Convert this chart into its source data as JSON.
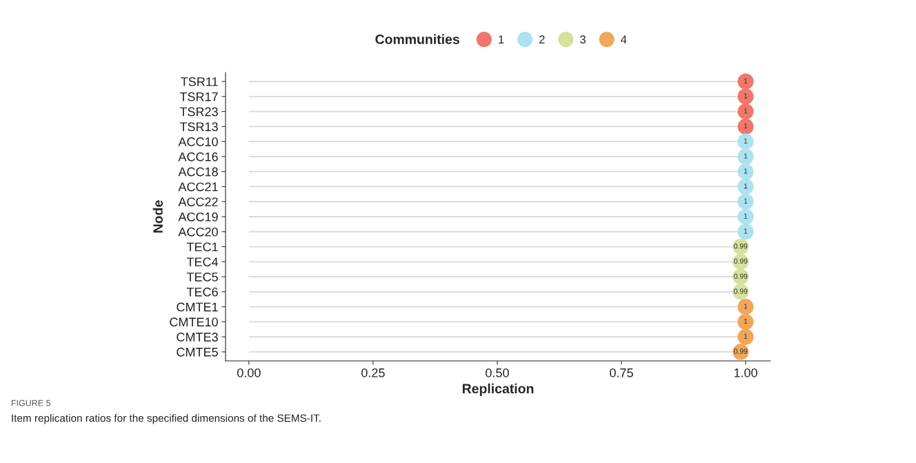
{
  "chart_data": {
    "type": "lollipop",
    "orientation": "horizontal",
    "xlabel": "Replication",
    "ylabel": "Node",
    "legend_title": "Communities",
    "legend": "top",
    "categories": [
      "TSR11",
      "TSR17",
      "TSR23",
      "TSR13",
      "ACC10",
      "ACC16",
      "ACC18",
      "ACC21",
      "ACC22",
      "ACC19",
      "ACC20",
      "TEC1",
      "TEC4",
      "TEC5",
      "TEC6",
      "CMTE1",
      "CMTE10",
      "CMTE3",
      "CMTE5"
    ],
    "series": [
      {
        "name": "1",
        "color": "#f0776b",
        "values": [
          1,
          1,
          1,
          1,
          null,
          null,
          null,
          null,
          null,
          null,
          null,
          null,
          null,
          null,
          null,
          null,
          null,
          null,
          null
        ]
      },
      {
        "name": "2",
        "color": "#ade2f0",
        "values": [
          null,
          null,
          null,
          null,
          1,
          1,
          1,
          1,
          1,
          1,
          1,
          null,
          null,
          null,
          null,
          null,
          null,
          null,
          null
        ]
      },
      {
        "name": "3",
        "color": "#d4e29c",
        "values": [
          null,
          null,
          null,
          null,
          null,
          null,
          null,
          null,
          null,
          null,
          null,
          0.99,
          0.99,
          0.99,
          0.99,
          null,
          null,
          null,
          null
        ]
      },
      {
        "name": "4",
        "color": "#f2a65a",
        "values": [
          null,
          null,
          null,
          null,
          null,
          null,
          null,
          null,
          null,
          null,
          null,
          null,
          null,
          null,
          null,
          1,
          1,
          1,
          0.99
        ]
      }
    ],
    "xlim": [
      -0.047,
      1.05
    ],
    "xticks": [
      {
        "value": 0,
        "label": "0.00"
      },
      {
        "value": 0.25,
        "label": "0.25"
      },
      {
        "value": 0.5,
        "label": "0.50"
      },
      {
        "value": 0.75,
        "label": "0.75"
      },
      {
        "value": 1,
        "label": "1.00"
      }
    ],
    "data_labels": true,
    "grid": false,
    "annotations": [
      "FIGURE 5",
      "Item replication ratios for the specified dimensions of the SEMS-IT."
    ]
  }
}
